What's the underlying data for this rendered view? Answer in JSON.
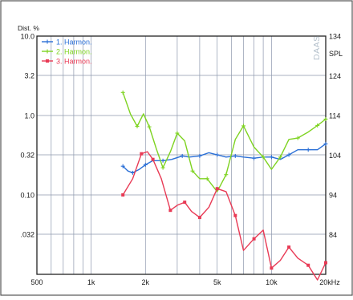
{
  "chart_data": {
    "type": "line",
    "title": "",
    "y_left_label": "Dist. %",
    "y_right_label": "SPL",
    "watermark": "DAAS",
    "x_scale": "log",
    "x_range": [
      500,
      20000
    ],
    "y_left_scale": "log",
    "y_left_range": [
      0.01,
      10.0
    ],
    "y_right_range": [
      74,
      134
    ],
    "x_tick_labels": [
      {
        "value": 500,
        "label": "500"
      },
      {
        "value": 1000,
        "label": "1k"
      },
      {
        "value": 2000,
        "label": "2k"
      },
      {
        "value": 5000,
        "label": "5k"
      },
      {
        "value": 10000,
        "label": "10k"
      },
      {
        "value": 20000,
        "label": "20kHz"
      }
    ],
    "y_left_tick_labels": [
      {
        "value": 10.0,
        "label": "10.0"
      },
      {
        "value": 3.2,
        "label": "3.2"
      },
      {
        "value": 1.0,
        "label": "1.0"
      },
      {
        "value": 0.32,
        "label": "0.32"
      },
      {
        "value": 0.1,
        "label": "0.10"
      },
      {
        "value": 0.032,
        "label": ".032"
      }
    ],
    "y_right_tick_labels": [
      {
        "value": 134,
        "label": "134"
      },
      {
        "value": 124,
        "label": "124"
      },
      {
        "value": 114,
        "label": "114"
      },
      {
        "value": 104,
        "label": "104"
      },
      {
        "value": 94,
        "label": "94"
      },
      {
        "value": 84,
        "label": "84"
      }
    ],
    "grid": true,
    "legend_position": "top-left",
    "series": [
      {
        "name": "1. Harmon.",
        "color": "#2a6fd6",
        "marker": "plus",
        "x": [
          1500,
          1600,
          1700,
          1850,
          2000,
          2200,
          2500,
          2800,
          3200,
          3500,
          4000,
          4500,
          5000,
          5600,
          6300,
          7000,
          8000,
          9000,
          10000,
          11200,
          12500,
          14000,
          16000,
          18000,
          20000
        ],
        "y": [
          0.23,
          0.2,
          0.19,
          0.21,
          0.24,
          0.27,
          0.27,
          0.28,
          0.31,
          0.3,
          0.31,
          0.34,
          0.32,
          0.3,
          0.31,
          0.3,
          0.29,
          0.3,
          0.3,
          0.28,
          0.32,
          0.37,
          0.37,
          0.37,
          0.44
        ]
      },
      {
        "name": "2. Harmon.",
        "color": "#7ed321",
        "marker": "plus",
        "x": [
          1500,
          1650,
          1800,
          1950,
          2100,
          2300,
          2500,
          2750,
          3000,
          3300,
          3650,
          4000,
          4400,
          5000,
          5600,
          6300,
          7000,
          8000,
          9000,
          10000,
          11200,
          12500,
          14000,
          16000,
          18000,
          20000
        ],
        "y": [
          1.95,
          1.05,
          0.73,
          1.05,
          0.72,
          0.38,
          0.22,
          0.35,
          0.6,
          0.48,
          0.2,
          0.16,
          0.16,
          0.11,
          0.18,
          0.5,
          0.74,
          0.4,
          0.3,
          0.21,
          0.3,
          0.5,
          0.52,
          0.62,
          0.75,
          0.9
        ]
      },
      {
        "name": "3. Harmon.",
        "color": "#e83a55",
        "marker": "square",
        "x": [
          1500,
          1700,
          1900,
          2050,
          2200,
          2450,
          2750,
          3000,
          3300,
          3600,
          4000,
          4500,
          5000,
          5600,
          6300,
          7000,
          8000,
          9000,
          10000,
          11200,
          12500,
          14000,
          16000,
          18000,
          20000
        ],
        "y": [
          0.1,
          0.16,
          0.33,
          0.35,
          0.28,
          0.16,
          0.064,
          0.074,
          0.081,
          0.062,
          0.052,
          0.07,
          0.12,
          0.11,
          0.055,
          0.02,
          0.028,
          0.036,
          0.012,
          0.015,
          0.022,
          0.016,
          0.013,
          0.0085,
          0.014
        ]
      }
    ]
  }
}
